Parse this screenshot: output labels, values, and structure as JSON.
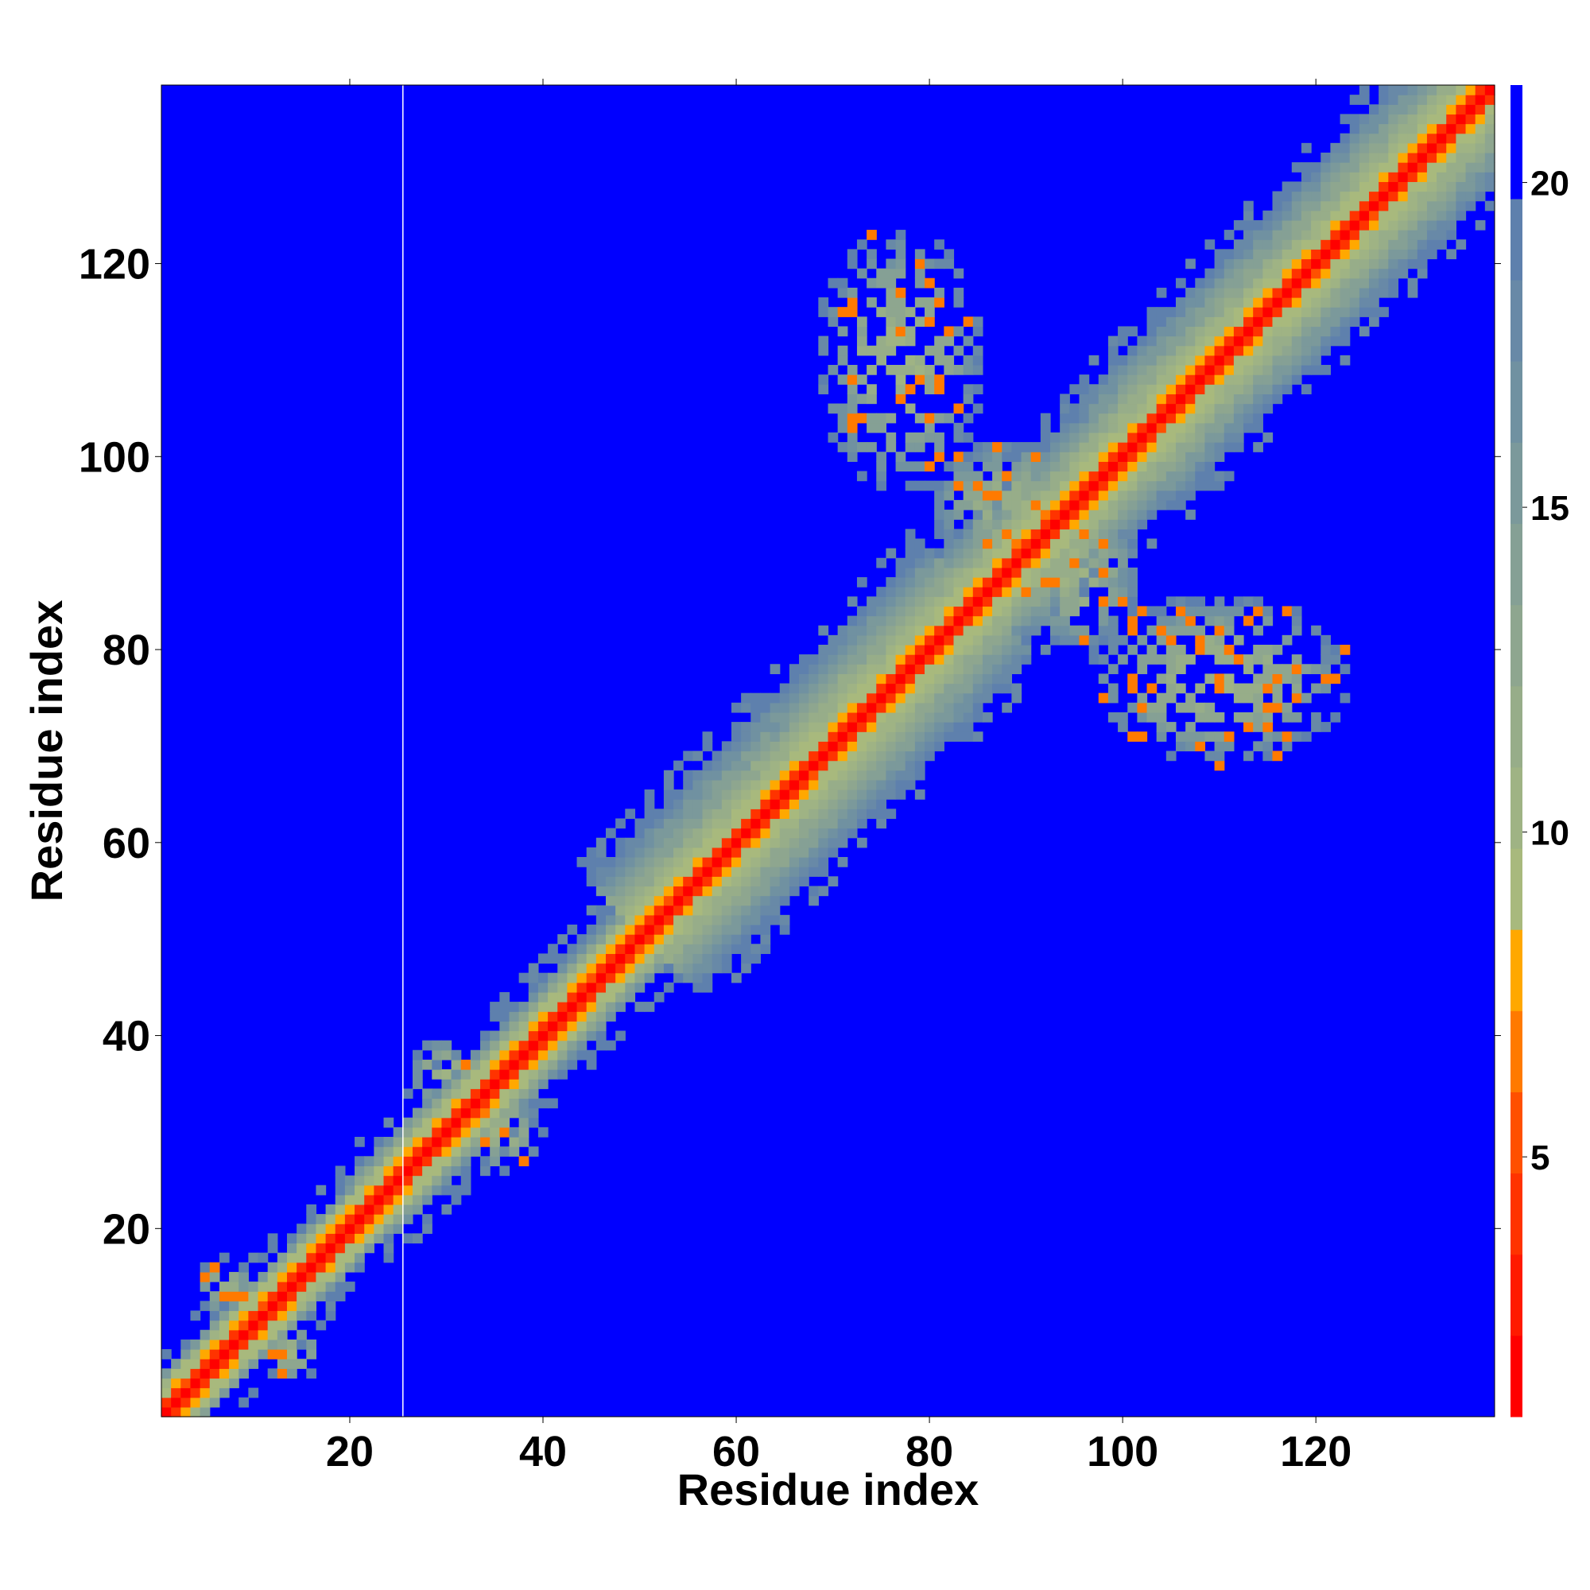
{
  "chart_data": {
    "type": "heatmap",
    "title": "",
    "xlabel": "Residue index",
    "ylabel": "Residue index",
    "xlim": [
      1,
      138
    ],
    "ylim": [
      1,
      138
    ],
    "x_ticks": [
      20,
      40,
      60,
      80,
      100,
      120
    ],
    "y_ticks": [
      20,
      40,
      60,
      80,
      100,
      120
    ],
    "colorbar": {
      "range": [
        1,
        21.5
      ],
      "ticks": [
        5,
        10,
        15,
        20
      ],
      "levels": [
        {
          "from": 1.0,
          "to": 2.25,
          "color": "#ff0000"
        },
        {
          "from": 2.25,
          "to": 3.5,
          "color": "#ff1a00"
        },
        {
          "from": 3.5,
          "to": 4.75,
          "color": "#ff3300"
        },
        {
          "from": 4.75,
          "to": 6.0,
          "color": "#ff5000"
        },
        {
          "from": 6.0,
          "to": 7.25,
          "color": "#ff7a00"
        },
        {
          "from": 7.25,
          "to": 8.5,
          "color": "#ffa800"
        },
        {
          "from": 8.5,
          "to": 9.75,
          "color": "#a8b97d"
        },
        {
          "from": 9.75,
          "to": 11.0,
          "color": "#9fb384"
        },
        {
          "from": 11.0,
          "to": 12.25,
          "color": "#97ad89"
        },
        {
          "from": 12.25,
          "to": 13.5,
          "color": "#8ea68f"
        },
        {
          "from": 13.5,
          "to": 14.75,
          "color": "#85a095"
        },
        {
          "from": 14.75,
          "to": 16.0,
          "color": "#7b999b"
        },
        {
          "from": 16.0,
          "to": 17.25,
          "color": "#7091a1"
        },
        {
          "from": 17.25,
          "to": 18.5,
          "color": "#6889a7"
        },
        {
          "from": 18.5,
          "to": 19.75,
          "color": "#5e80ad"
        },
        {
          "from": 19.75,
          "to": 21.5,
          "color": "#0000ff"
        }
      ]
    },
    "background_color": "#0000ff",
    "diagonal": {
      "core_color": "#ff0000",
      "band": [
        {
          "x_from": 1,
          "x_to": 22,
          "halfwidth": 5
        },
        {
          "x_from": 22,
          "x_to": 50,
          "halfwidth": 6
        },
        {
          "x_from": 50,
          "x_to": 85,
          "halfwidth": 12
        },
        {
          "x_from": 85,
          "x_to": 100,
          "halfwidth": 10
        },
        {
          "x_from": 100,
          "x_to": 138,
          "halfwidth": 11
        }
      ]
    },
    "contact_patches": [
      {
        "x_center": 77,
        "y_center": 110,
        "x_half": 9,
        "y_half": 14,
        "density": 0.55
      },
      {
        "x_center": 110,
        "y_center": 77,
        "x_half": 14,
        "y_half": 9,
        "density": 0.55
      },
      {
        "x_center": 88,
        "y_center": 95,
        "x_half": 8,
        "y_half": 7,
        "density": 0.7
      },
      {
        "x_center": 95,
        "y_center": 88,
        "x_half": 7,
        "y_half": 8,
        "density": 0.7
      },
      {
        "x_center": 7,
        "y_center": 14,
        "x_half": 3,
        "y_half": 3,
        "density": 0.6
      },
      {
        "x_center": 14,
        "y_center": 7,
        "x_half": 3,
        "y_half": 3,
        "density": 0.6
      },
      {
        "x_center": 30,
        "y_center": 36,
        "x_half": 4,
        "y_half": 4,
        "density": 0.55
      },
      {
        "x_center": 36,
        "y_center": 30,
        "x_half": 4,
        "y_half": 4,
        "density": 0.55
      }
    ],
    "separator_line_x": 26
  }
}
